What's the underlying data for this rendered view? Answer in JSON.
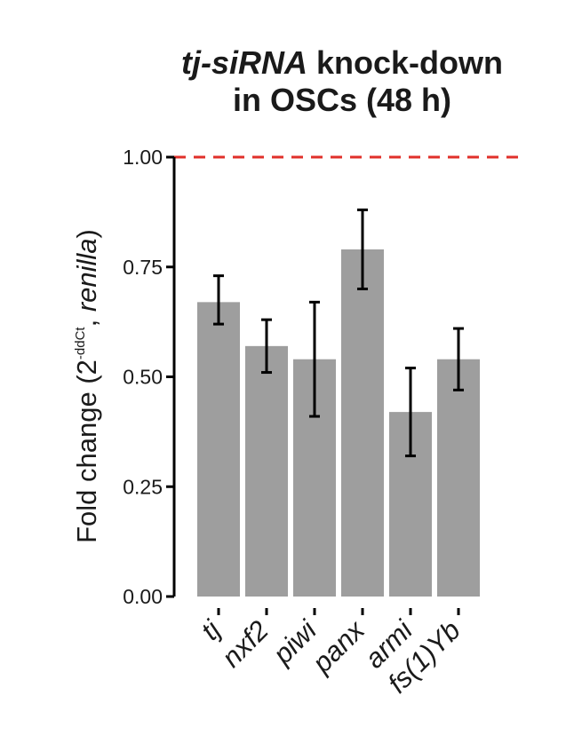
{
  "title": {
    "line1_italic": "tj-siRNA",
    "line1_rest": " knock-down",
    "line2": "in OSCs (48 h)"
  },
  "ylabel": {
    "prefix": "Fold change (2",
    "superscript": "-ddCt",
    "middle": ", ",
    "italic": "renilla",
    "suffix": ")"
  },
  "colors": {
    "bar": "#9e9e9e",
    "reference_line": "#e0302a",
    "axis": "#000000",
    "error_bar": "#000000"
  },
  "chart_data": {
    "type": "bar",
    "categories": [
      "tj",
      "nxf2",
      "piwi",
      "panx",
      "armi",
      "fs(1)Yb"
    ],
    "values": [
      0.67,
      0.57,
      0.54,
      0.79,
      0.42,
      0.54
    ],
    "error_low": [
      0.62,
      0.51,
      0.41,
      0.7,
      0.32,
      0.47
    ],
    "error_high": [
      0.73,
      0.63,
      0.67,
      0.88,
      0.52,
      0.61
    ],
    "reference_line": 1.0,
    "ylim": [
      0,
      1.0
    ],
    "yticks": [
      0.0,
      0.25,
      0.5,
      0.75,
      1.0
    ],
    "ytick_labels": [
      "0.00",
      "0.25",
      "0.50",
      "0.75",
      "1.00"
    ],
    "grid": false,
    "category_labels_italic": true
  }
}
